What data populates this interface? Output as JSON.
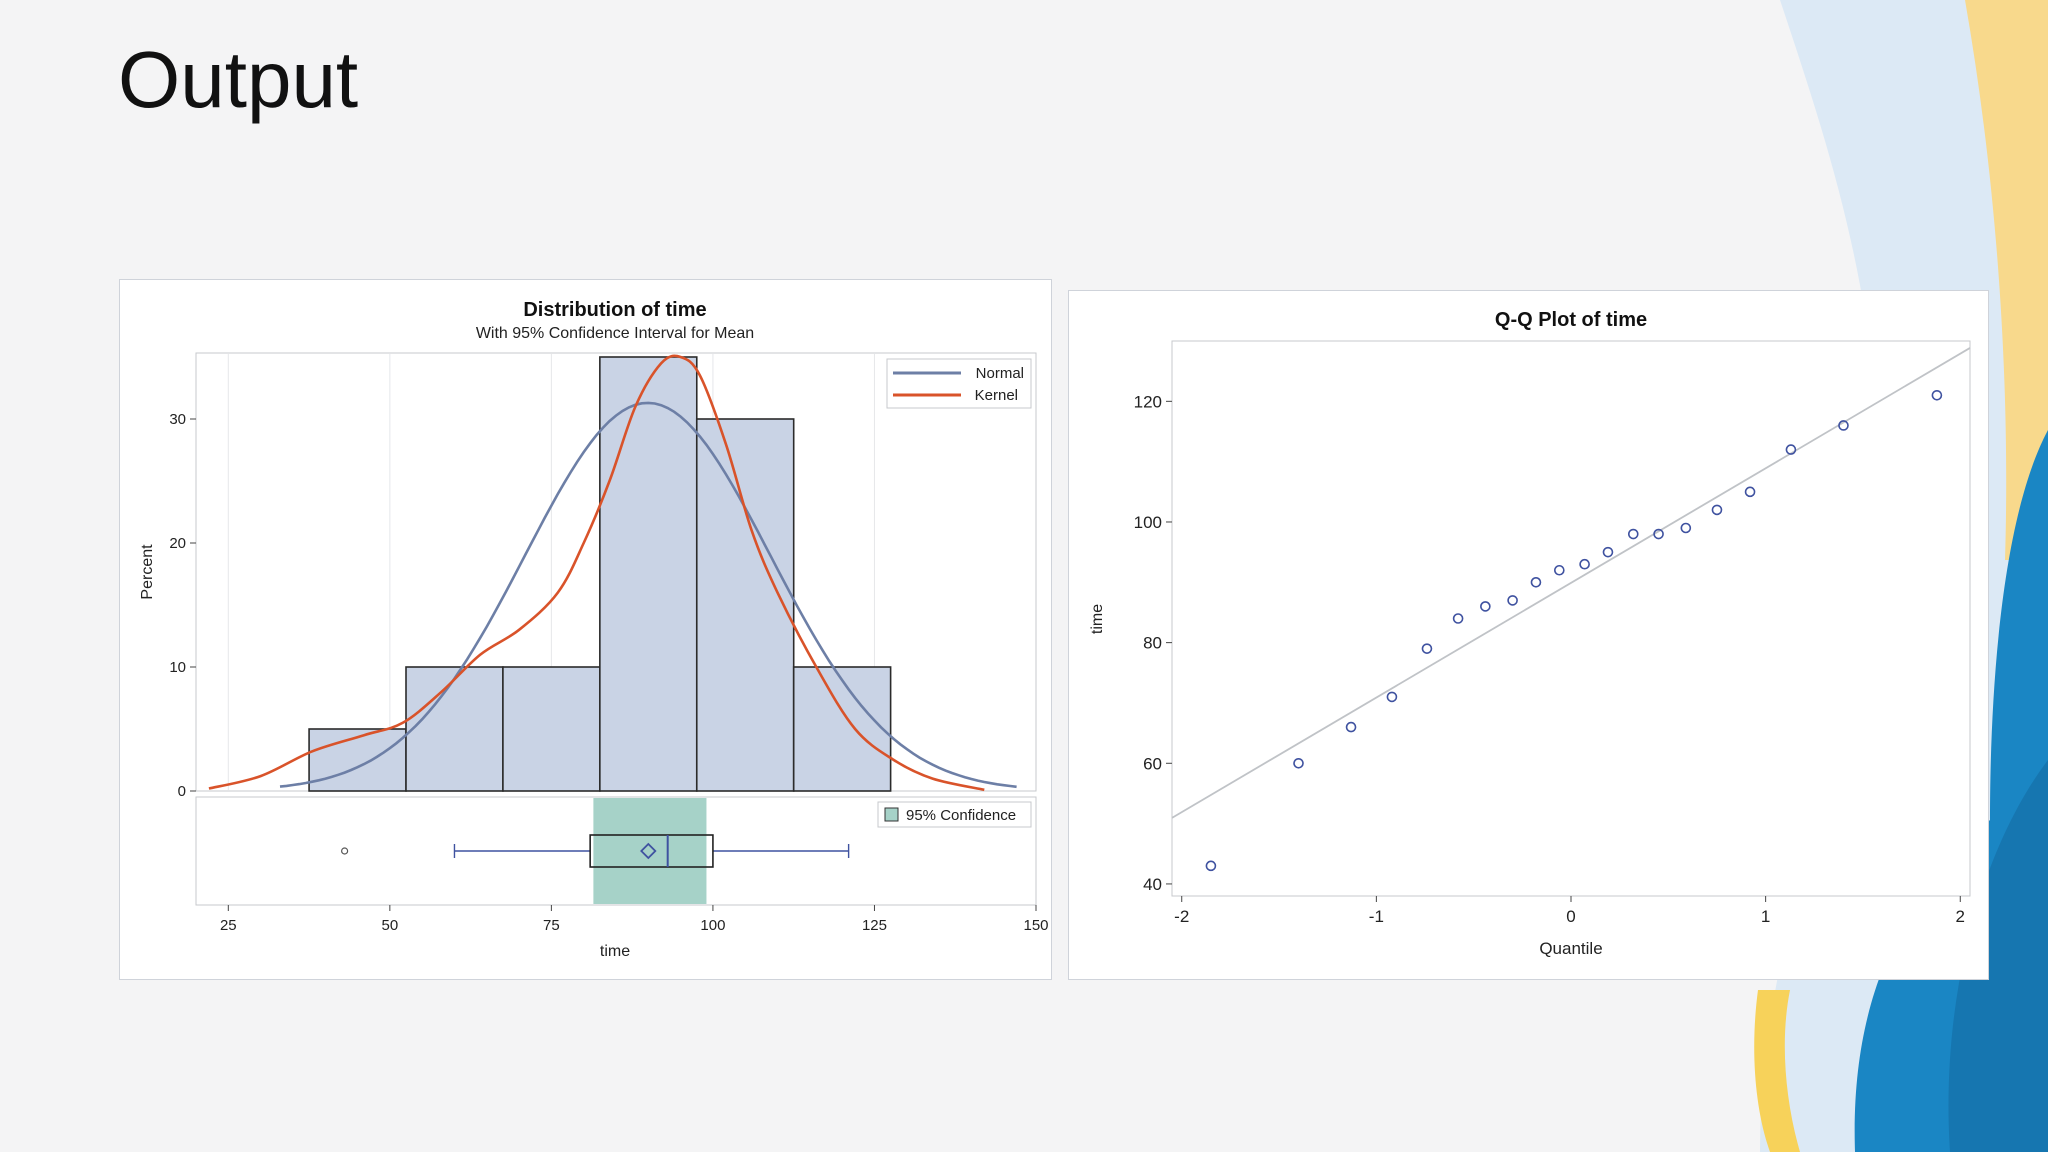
{
  "slide": {
    "title": "Output"
  },
  "colors": {
    "bar_fill": "#c9d3e5",
    "bar_stroke": "#2b2b2b",
    "normal_curve": "#6d7fa6",
    "kernel_curve": "#d9532a",
    "ci_band": "#a6d2c8",
    "qq_marker": "#3f52a0",
    "qq_line": "#c0c3c7",
    "accent_blue": "#1a86c4",
    "accent_yellow": "#f7d25a"
  },
  "legends": {
    "normal": "Normal",
    "kernel": "Kernel",
    "confidence": "95% Confidence"
  },
  "chart_data": [
    {
      "type": "bar",
      "title": "Distribution of time",
      "subtitle": "With 95% Confidence Interval for Mean",
      "xlabel": "time",
      "ylabel": "Percent",
      "xlim": [
        20,
        150
      ],
      "ylim": [
        0,
        35
      ],
      "xticks": [
        25,
        50,
        75,
        100,
        125,
        150
      ],
      "yticks": [
        0,
        10,
        20,
        30
      ],
      "bins": [
        {
          "from": 37.5,
          "to": 52.5,
          "value": 5
        },
        {
          "from": 52.5,
          "to": 67.5,
          "value": 10
        },
        {
          "from": 67.5,
          "to": 82.5,
          "value": 10
        },
        {
          "from": 82.5,
          "to": 97.5,
          "value": 35
        },
        {
          "from": 97.5,
          "to": 112.5,
          "value": 30
        },
        {
          "from": 112.5,
          "to": 127.5,
          "value": 10
        }
      ],
      "series": [
        {
          "name": "Normal",
          "mean": 89.9,
          "sd": 19.0,
          "peak": 31.3,
          "x_range": [
            33,
            147
          ]
        },
        {
          "name": "Kernel",
          "x": [
            22,
            30,
            38,
            46,
            52,
            58,
            64,
            70,
            76,
            80,
            84,
            88,
            92,
            95,
            98,
            102,
            106,
            110,
            116,
            122,
            128,
            134,
            142
          ],
          "y": [
            0.2,
            1.2,
            3.2,
            4.5,
            5.5,
            8,
            11,
            13,
            16,
            20,
            25,
            31,
            34.5,
            35,
            33.5,
            28,
            21,
            16,
            10,
            5,
            2.5,
            1,
            0.1
          ]
        }
      ],
      "boxplot": {
        "min": 60,
        "q1": 81,
        "median": 93,
        "mean": 90,
        "q3": 100,
        "max": 121,
        "outliers": [
          43
        ],
        "ci": [
          81.5,
          99
        ]
      }
    },
    {
      "type": "scatter",
      "title": "Q-Q Plot of time",
      "xlabel": "Quantile",
      "ylabel": "time",
      "xlim": [
        -2.05,
        2.05
      ],
      "ylim": [
        38,
        130
      ],
      "xticks": [
        -2,
        -1,
        0,
        1,
        2
      ],
      "yticks": [
        40,
        60,
        80,
        100,
        120
      ],
      "points": [
        {
          "x": -1.85,
          "y": 43
        },
        {
          "x": -1.4,
          "y": 60
        },
        {
          "x": -1.13,
          "y": 66
        },
        {
          "x": -0.92,
          "y": 71
        },
        {
          "x": -0.74,
          "y": 79
        },
        {
          "x": -0.58,
          "y": 84
        },
        {
          "x": -0.44,
          "y": 86
        },
        {
          "x": -0.3,
          "y": 87
        },
        {
          "x": -0.18,
          "y": 90
        },
        {
          "x": -0.06,
          "y": 92
        },
        {
          "x": 0.07,
          "y": 93
        },
        {
          "x": 0.19,
          "y": 95
        },
        {
          "x": 0.32,
          "y": 98
        },
        {
          "x": 0.45,
          "y": 98
        },
        {
          "x": 0.59,
          "y": 99
        },
        {
          "x": 0.75,
          "y": 102
        },
        {
          "x": 0.92,
          "y": 105
        },
        {
          "x": 1.13,
          "y": 112
        },
        {
          "x": 1.4,
          "y": 116
        },
        {
          "x": 1.88,
          "y": 121
        }
      ],
      "reference_line": {
        "intercept": 89.9,
        "slope": 19.0
      }
    }
  ]
}
